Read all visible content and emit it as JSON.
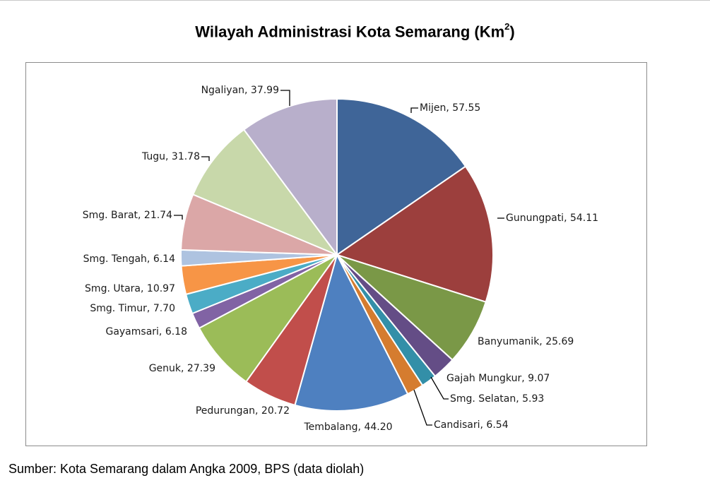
{
  "title_text": "Wilayah Administrasi Kota Semarang  (Km",
  "title_sup": "2",
  "title_close": ")",
  "source": "Sumber: Kota Semarang dalam Angka 2009, BPS (data diolah)",
  "chart_data": {
    "type": "pie",
    "title": "Wilayah Administrasi Kota Semarang (Km2)",
    "start_angle": "12 o'clock, clockwise",
    "slices": [
      {
        "label": "Mijen",
        "value": 57.55,
        "text": "Mijen, 57.55",
        "color": "#3f6598"
      },
      {
        "label": "Gunungpati",
        "value": 54.11,
        "text": "Gunungpati, 54.11",
        "color": "#9c3f3d"
      },
      {
        "label": "Banyumanik",
        "value": 25.69,
        "text": "Banyumanik, 25.69",
        "color": "#7a9847"
      },
      {
        "label": "Gajah Mungkur",
        "value": 9.07,
        "text": "Gajah Mungkur, 9.07",
        "color": "#644d86"
      },
      {
        "label": "Smg. Selatan",
        "value": 5.93,
        "text": "Smg. Selatan, 5.93",
        "color": "#338fa8"
      },
      {
        "label": "Candisari",
        "value": 6.54,
        "text": "Candisari, 6.54",
        "color": "#d57c2f"
      },
      {
        "label": "Tembalang",
        "value": 44.2,
        "text": "Tembalang, 44.20",
        "color": "#4e80c0"
      },
      {
        "label": "Pedurungan",
        "value": 20.72,
        "text": "Pedurungan, 20.72",
        "color": "#c14e4b"
      },
      {
        "label": "Genuk",
        "value": 27.39,
        "text": "Genuk, 27.39",
        "color": "#9bbc58"
      },
      {
        "label": "Gayamsari",
        "value": 6.18,
        "text": "Gayamsari, 6.18",
        "color": "#8163a4"
      },
      {
        "label": "Smg. Timur",
        "value": 7.7,
        "text": "Smg. Timur, 7.70",
        "color": "#4bacc6"
      },
      {
        "label": "Smg. Utara",
        "value": 10.97,
        "text": "Smg. Utara, 10.97",
        "color": "#f79546"
      },
      {
        "label": "Smg. Tengah",
        "value": 6.14,
        "text": "Smg. Tengah, 6.14",
        "color": "#aec3e0"
      },
      {
        "label": "Smg. Barat",
        "value": 21.74,
        "text": "Smg. Barat, 21.74",
        "color": "#dba7a7"
      },
      {
        "label": "Tugu",
        "value": 31.78,
        "text": "Tugu, 31.78",
        "color": "#c8d8aa"
      },
      {
        "label": "Ngaliyan",
        "value": 37.99,
        "text": "Ngaliyan, 37.99",
        "color": "#b8afcb"
      }
    ]
  }
}
